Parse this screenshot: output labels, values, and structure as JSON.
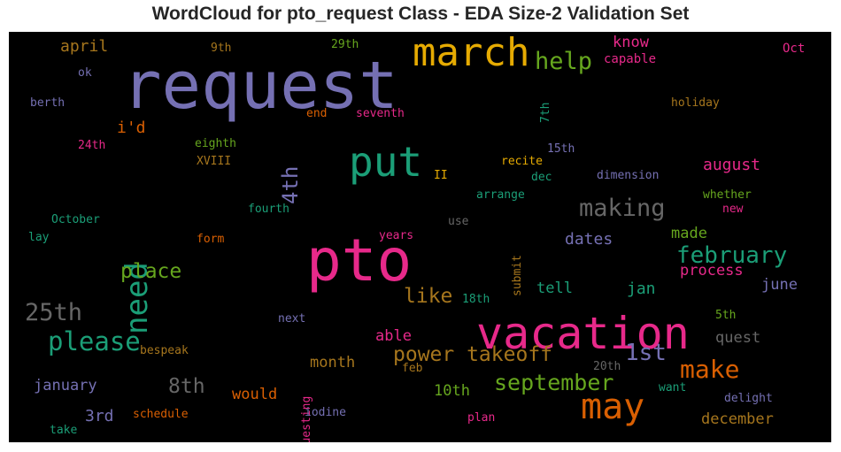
{
  "title": "WordCloud for pto_request Class - EDA Size-2 Validation Set",
  "chart_data": {
    "type": "wordcloud",
    "words": [
      {
        "text": "request",
        "color": "#7570b3"
      },
      {
        "text": "pto",
        "color": "#e7298a"
      },
      {
        "text": "vacation",
        "color": "#e7298a"
      },
      {
        "text": "march",
        "color": "#e6ab02"
      },
      {
        "text": "put",
        "color": "#1b9e77"
      },
      {
        "text": "may",
        "color": "#d95f02"
      },
      {
        "text": "need",
        "color": "#1b9e77"
      },
      {
        "text": "making",
        "color": "#666666"
      },
      {
        "text": "please",
        "color": "#1b9e77"
      },
      {
        "text": "february",
        "color": "#1b9e77"
      },
      {
        "text": "help",
        "color": "#66a61e"
      },
      {
        "text": "25th",
        "color": "#666666"
      },
      {
        "text": "make",
        "color": "#d95f02"
      },
      {
        "text": "september",
        "color": "#66a61e"
      },
      {
        "text": "1st",
        "color": "#7570b3"
      },
      {
        "text": "power takeoff",
        "color": "#a6761d"
      },
      {
        "text": "place",
        "color": "#66a61e"
      },
      {
        "text": "4th",
        "color": "#7570b3"
      },
      {
        "text": "like",
        "color": "#a6761d"
      },
      {
        "text": "8th",
        "color": "#666666"
      },
      {
        "text": "august",
        "color": "#e7298a"
      },
      {
        "text": "dates",
        "color": "#7570b3"
      },
      {
        "text": "april",
        "color": "#a6761d"
      },
      {
        "text": "i'd",
        "color": "#d95f02"
      },
      {
        "text": "know",
        "color": "#e7298a"
      },
      {
        "text": "made",
        "color": "#66a61e"
      },
      {
        "text": "process",
        "color": "#e7298a"
      },
      {
        "text": "tell",
        "color": "#1b9e77"
      },
      {
        "text": "jan",
        "color": "#1b9e77"
      },
      {
        "text": "june",
        "color": "#7570b3"
      },
      {
        "text": "able",
        "color": "#e7298a"
      },
      {
        "text": "month",
        "color": "#a6761d"
      },
      {
        "text": "quest",
        "color": "#666666"
      },
      {
        "text": "january",
        "color": "#7570b3"
      },
      {
        "text": "would",
        "color": "#d95f02"
      },
      {
        "text": "10th",
        "color": "#66a61e"
      },
      {
        "text": "3rd",
        "color": "#7570b3"
      },
      {
        "text": "december",
        "color": "#a6761d"
      },
      {
        "text": "capable",
        "color": "#e7298a"
      },
      {
        "text": "Oct",
        "color": "#e7298a"
      },
      {
        "text": "9th",
        "color": "#a6761d"
      },
      {
        "text": "29th",
        "color": "#66a61e"
      },
      {
        "text": "ok",
        "color": "#7570b3"
      },
      {
        "text": "berth",
        "color": "#7570b3"
      },
      {
        "text": "end",
        "color": "#d95f02"
      },
      {
        "text": "seventh",
        "color": "#e7298a"
      },
      {
        "text": "7th",
        "color": "#1b9e77"
      },
      {
        "text": "holiday",
        "color": "#a6761d"
      },
      {
        "text": "24th",
        "color": "#e7298a"
      },
      {
        "text": "eighth",
        "color": "#66a61e"
      },
      {
        "text": "XVIII",
        "color": "#a6761d"
      },
      {
        "text": "15th",
        "color": "#7570b3"
      },
      {
        "text": "recite",
        "color": "#e6ab02"
      },
      {
        "text": "II",
        "color": "#e6ab02"
      },
      {
        "text": "dec",
        "color": "#1b9e77"
      },
      {
        "text": "dimension",
        "color": "#7570b3"
      },
      {
        "text": "arrange",
        "color": "#1b9e77"
      },
      {
        "text": "whether",
        "color": "#66a61e"
      },
      {
        "text": "new",
        "color": "#e7298a"
      },
      {
        "text": "fourth",
        "color": "#1b9e77"
      },
      {
        "text": "October",
        "color": "#1b9e77"
      },
      {
        "text": "use",
        "color": "#666666"
      },
      {
        "text": "submit",
        "color": "#a6761d"
      },
      {
        "text": "lay",
        "color": "#1b9e77"
      },
      {
        "text": "form",
        "color": "#d95f02"
      },
      {
        "text": "years",
        "color": "#e7298a"
      },
      {
        "text": "18th",
        "color": "#1b9e77"
      },
      {
        "text": "next",
        "color": "#7570b3"
      },
      {
        "text": "5th",
        "color": "#66a61e"
      },
      {
        "text": "bespeak",
        "color": "#a6761d"
      },
      {
        "text": "requesting",
        "color": "#e7298a"
      },
      {
        "text": "feb",
        "color": "#a6761d"
      },
      {
        "text": "20th",
        "color": "#666666"
      },
      {
        "text": "want",
        "color": "#1b9e77"
      },
      {
        "text": "delight",
        "color": "#7570b3"
      },
      {
        "text": "schedule",
        "color": "#d95f02"
      },
      {
        "text": "iodine",
        "color": "#7570b3"
      },
      {
        "text": "plan",
        "color": "#e7298a"
      },
      {
        "text": "take",
        "color": "#1b9e77"
      }
    ]
  }
}
